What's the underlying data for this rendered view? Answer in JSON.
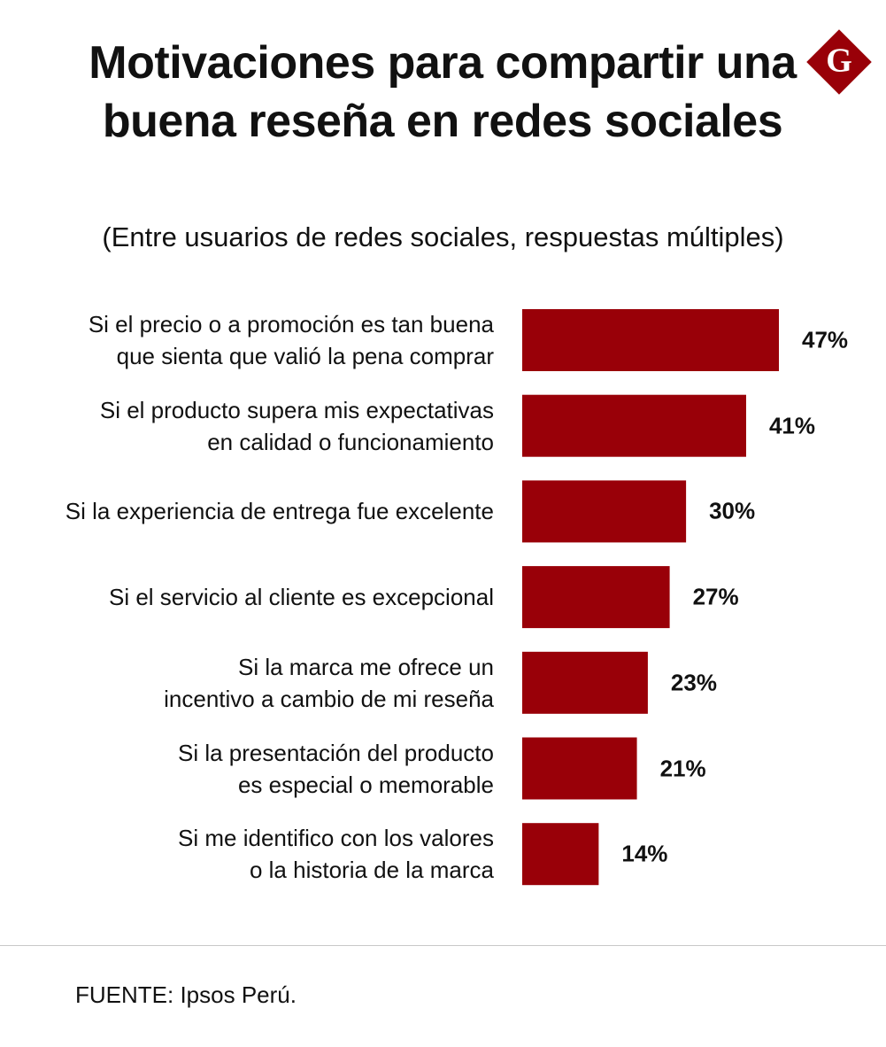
{
  "logo": "G",
  "chart_data": {
    "type": "bar",
    "orientation": "horizontal",
    "title": "Motivaciones para compartir una buena reseña en redes sociales",
    "subtitle": "(Entre usuarios de redes sociales, respuestas múltiples)",
    "categories": [
      "Si el precio o a promoción es tan buena que sienta que valió la pena comprar",
      "Si el producto supera mis expectativas en calidad o funcionamiento",
      "Si la experiencia de entrega fue excelente",
      "Si el servicio al cliente es excepcional",
      "Si la marca me ofrece un incentivo a cambio de mi reseña",
      "Si la presentación del producto es especial o memorable",
      "Si me identifico con los valores o la historia de la marca"
    ],
    "values": [
      47,
      41,
      30,
      27,
      23,
      21,
      14
    ],
    "value_labels": [
      "47%",
      "41%",
      "30%",
      "27%",
      "23%",
      "21%",
      "14%"
    ],
    "color": "#990008",
    "source": "FUENTE: Ipsos Perú."
  }
}
